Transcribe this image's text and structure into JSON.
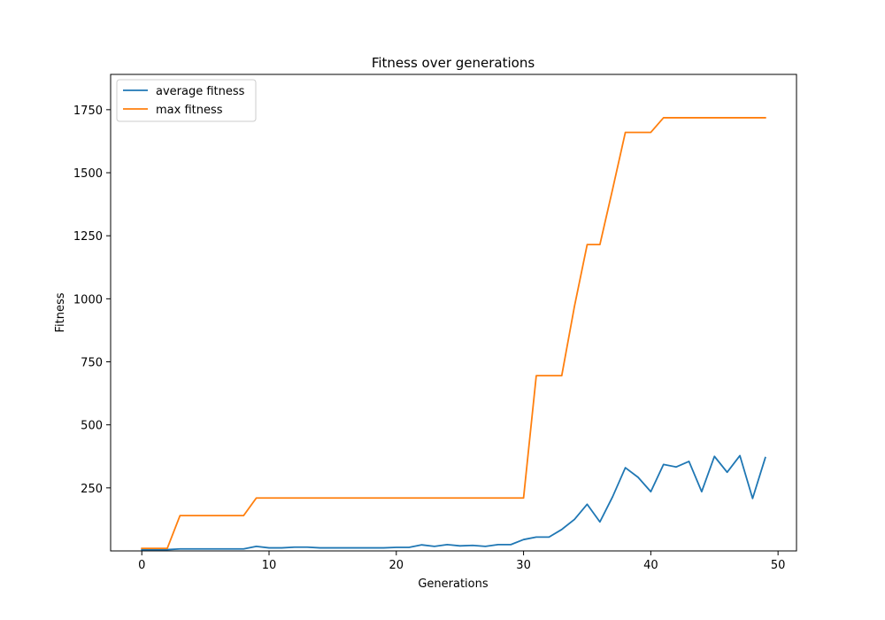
{
  "chart_data": {
    "type": "line",
    "title": "Fitness over generations",
    "xlabel": "Generations",
    "ylabel": "Fitness",
    "xlim": [
      -2.45,
      51.45
    ],
    "ylim": [
      0,
      1890
    ],
    "xticks": [
      0,
      10,
      20,
      30,
      40,
      50
    ],
    "yticks": [
      250,
      500,
      750,
      1000,
      1250,
      1500,
      1750
    ],
    "grid": false,
    "legend_position": "top-left",
    "x": [
      0,
      1,
      2,
      3,
      4,
      5,
      6,
      7,
      8,
      9,
      10,
      11,
      12,
      13,
      14,
      15,
      16,
      17,
      18,
      19,
      20,
      21,
      22,
      23,
      24,
      25,
      26,
      27,
      28,
      29,
      30,
      31,
      32,
      33,
      34,
      35,
      36,
      37,
      38,
      39,
      40,
      41,
      42,
      43,
      44,
      45,
      46,
      47,
      48,
      49
    ],
    "series": [
      {
        "name": "average fitness",
        "color": "#1f77b4",
        "values": [
          5,
          5,
          5,
          8,
          8,
          8,
          8,
          8,
          8,
          18,
          12,
          12,
          15,
          15,
          12,
          12,
          12,
          12,
          12,
          12,
          14,
          14,
          24,
          18,
          25,
          20,
          22,
          18,
          25,
          25,
          45,
          55,
          55,
          85,
          125,
          185,
          115,
          215,
          330,
          292,
          235,
          343,
          333,
          355,
          235,
          375,
          312,
          378,
          208,
          370
        ]
      },
      {
        "name": "max fitness",
        "color": "#ff7f0e",
        "values": [
          10,
          10,
          10,
          140,
          140,
          140,
          140,
          140,
          140,
          210,
          210,
          210,
          210,
          210,
          210,
          210,
          210,
          210,
          210,
          210,
          210,
          210,
          210,
          210,
          210,
          210,
          210,
          210,
          210,
          210,
          210,
          695,
          695,
          695,
          970,
          1215,
          1215,
          1435,
          1660,
          1660,
          1660,
          1718,
          1718,
          1718,
          1718,
          1718,
          1718,
          1718,
          1718,
          1718
        ]
      }
    ]
  }
}
